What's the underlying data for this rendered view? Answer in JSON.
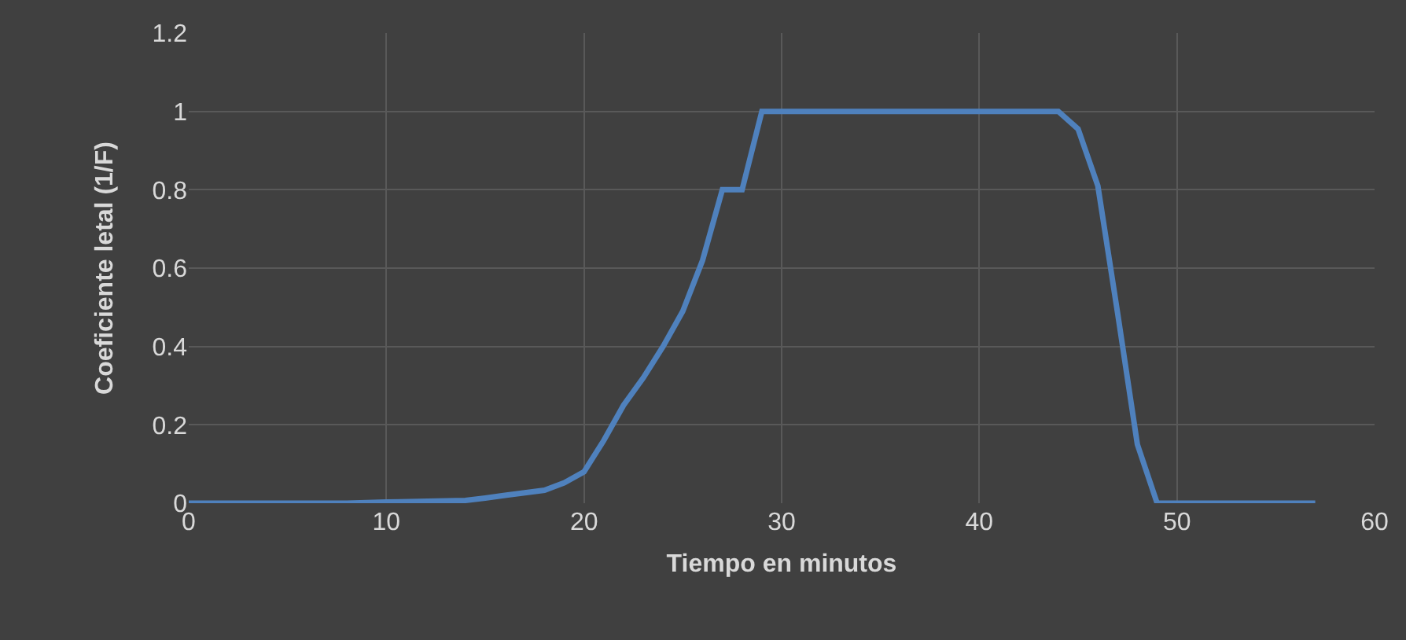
{
  "chart_data": {
    "type": "line",
    "xlabel": "Tiempo en minutos",
    "ylabel": "Coeficiente letal (1/F)",
    "x": [
      0,
      8,
      10,
      14,
      15,
      16,
      18,
      19,
      20,
      21,
      22,
      23,
      24,
      25,
      26,
      27,
      28,
      29,
      44,
      45,
      46,
      47,
      48,
      49,
      57
    ],
    "series": [
      {
        "color": "#4f81bd",
        "values": [
          0,
          0,
          0.003,
          0.007,
          0.013,
          0.02,
          0.033,
          0.052,
          0.08,
          0.16,
          0.25,
          0.32,
          0.4,
          0.49,
          0.62,
          0.8,
          0.8,
          1,
          1,
          0.955,
          0.81,
          0.485,
          0.15,
          0,
          0
        ]
      }
    ],
    "xlim": [
      0,
      60
    ],
    "xticks": [
      0,
      10,
      20,
      30,
      40,
      50,
      60
    ],
    "ylim": [
      0,
      1.2
    ],
    "yticks": [
      0,
      0.2,
      0.4,
      0.6,
      0.8,
      1,
      1.2
    ],
    "grid": true,
    "marker": "none",
    "line_style": "solid"
  }
}
